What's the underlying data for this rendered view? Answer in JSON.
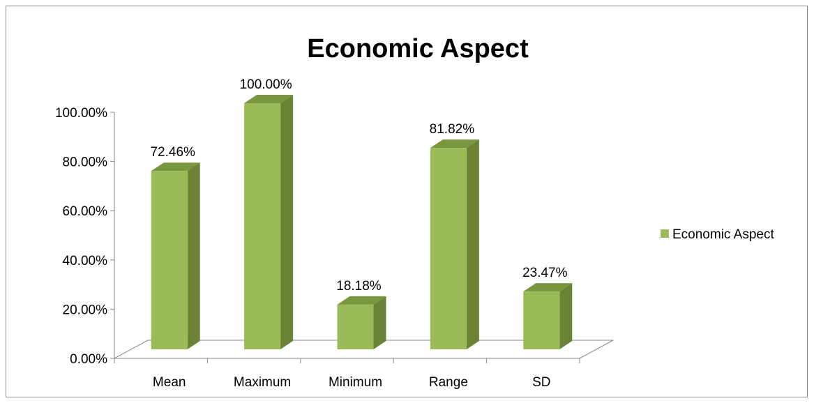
{
  "chart_data": {
    "type": "bar",
    "title": "Economic Aspect",
    "categories": [
      "Mean",
      "Maximum",
      "Minimum",
      "Range",
      "SD"
    ],
    "series": [
      {
        "name": "Economic Aspect",
        "values": [
          72.46,
          100.0,
          18.18,
          81.82,
          23.47
        ]
      }
    ],
    "data_labels": [
      "72.46%",
      "100.00%",
      "18.18%",
      "81.82%",
      "23.47%"
    ],
    "y_ticks": [
      "0.00%",
      "20.00%",
      "40.00%",
      "60.00%",
      "80.00%",
      "100.00%"
    ],
    "ylim": [
      0,
      100
    ],
    "y_unit": "%",
    "grid": false,
    "legend_position": "right",
    "colors": {
      "bar_front": "#9bbb59",
      "bar_side": "#6b8334",
      "bar_top": "#7a963f",
      "axis": "#868686"
    }
  }
}
